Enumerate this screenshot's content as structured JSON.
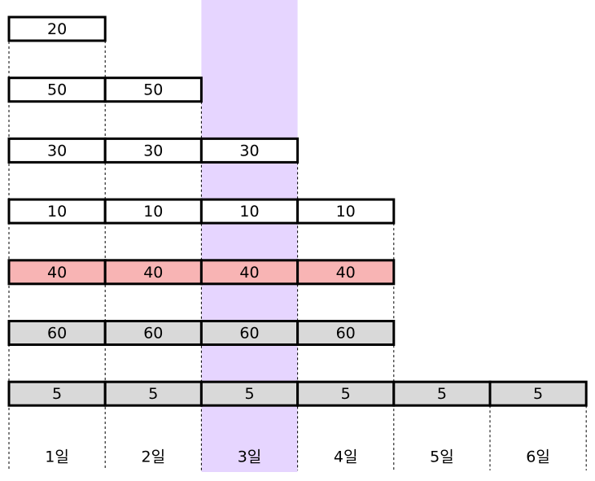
{
  "rows": [
    {
      "cells": [
        "20"
      ],
      "fill": "#ffffff"
    },
    {
      "cells": [
        "50",
        "50"
      ],
      "fill": "#ffffff"
    },
    {
      "cells": [
        "30",
        "30",
        "30"
      ],
      "fill": "#ffffff"
    },
    {
      "cells": [
        "10",
        "10",
        "10",
        "10"
      ],
      "fill": "#ffffff"
    },
    {
      "cells": [
        "40",
        "40",
        "40",
        "40"
      ],
      "fill": "#f8b4b4"
    },
    {
      "cells": [
        "60",
        "60",
        "60",
        "60"
      ],
      "fill": "#d9d9d9"
    },
    {
      "cells": [
        "5",
        "5",
        "5",
        "5",
        "5",
        "5"
      ],
      "fill": "#d9d9d9"
    }
  ],
  "days": [
    "1일",
    "2일",
    "3일",
    "4일",
    "5일",
    "6일"
  ],
  "highlight_day": 2,
  "highlight_color": "#e6d5ff",
  "highlight_text_color": "#ff0000"
}
